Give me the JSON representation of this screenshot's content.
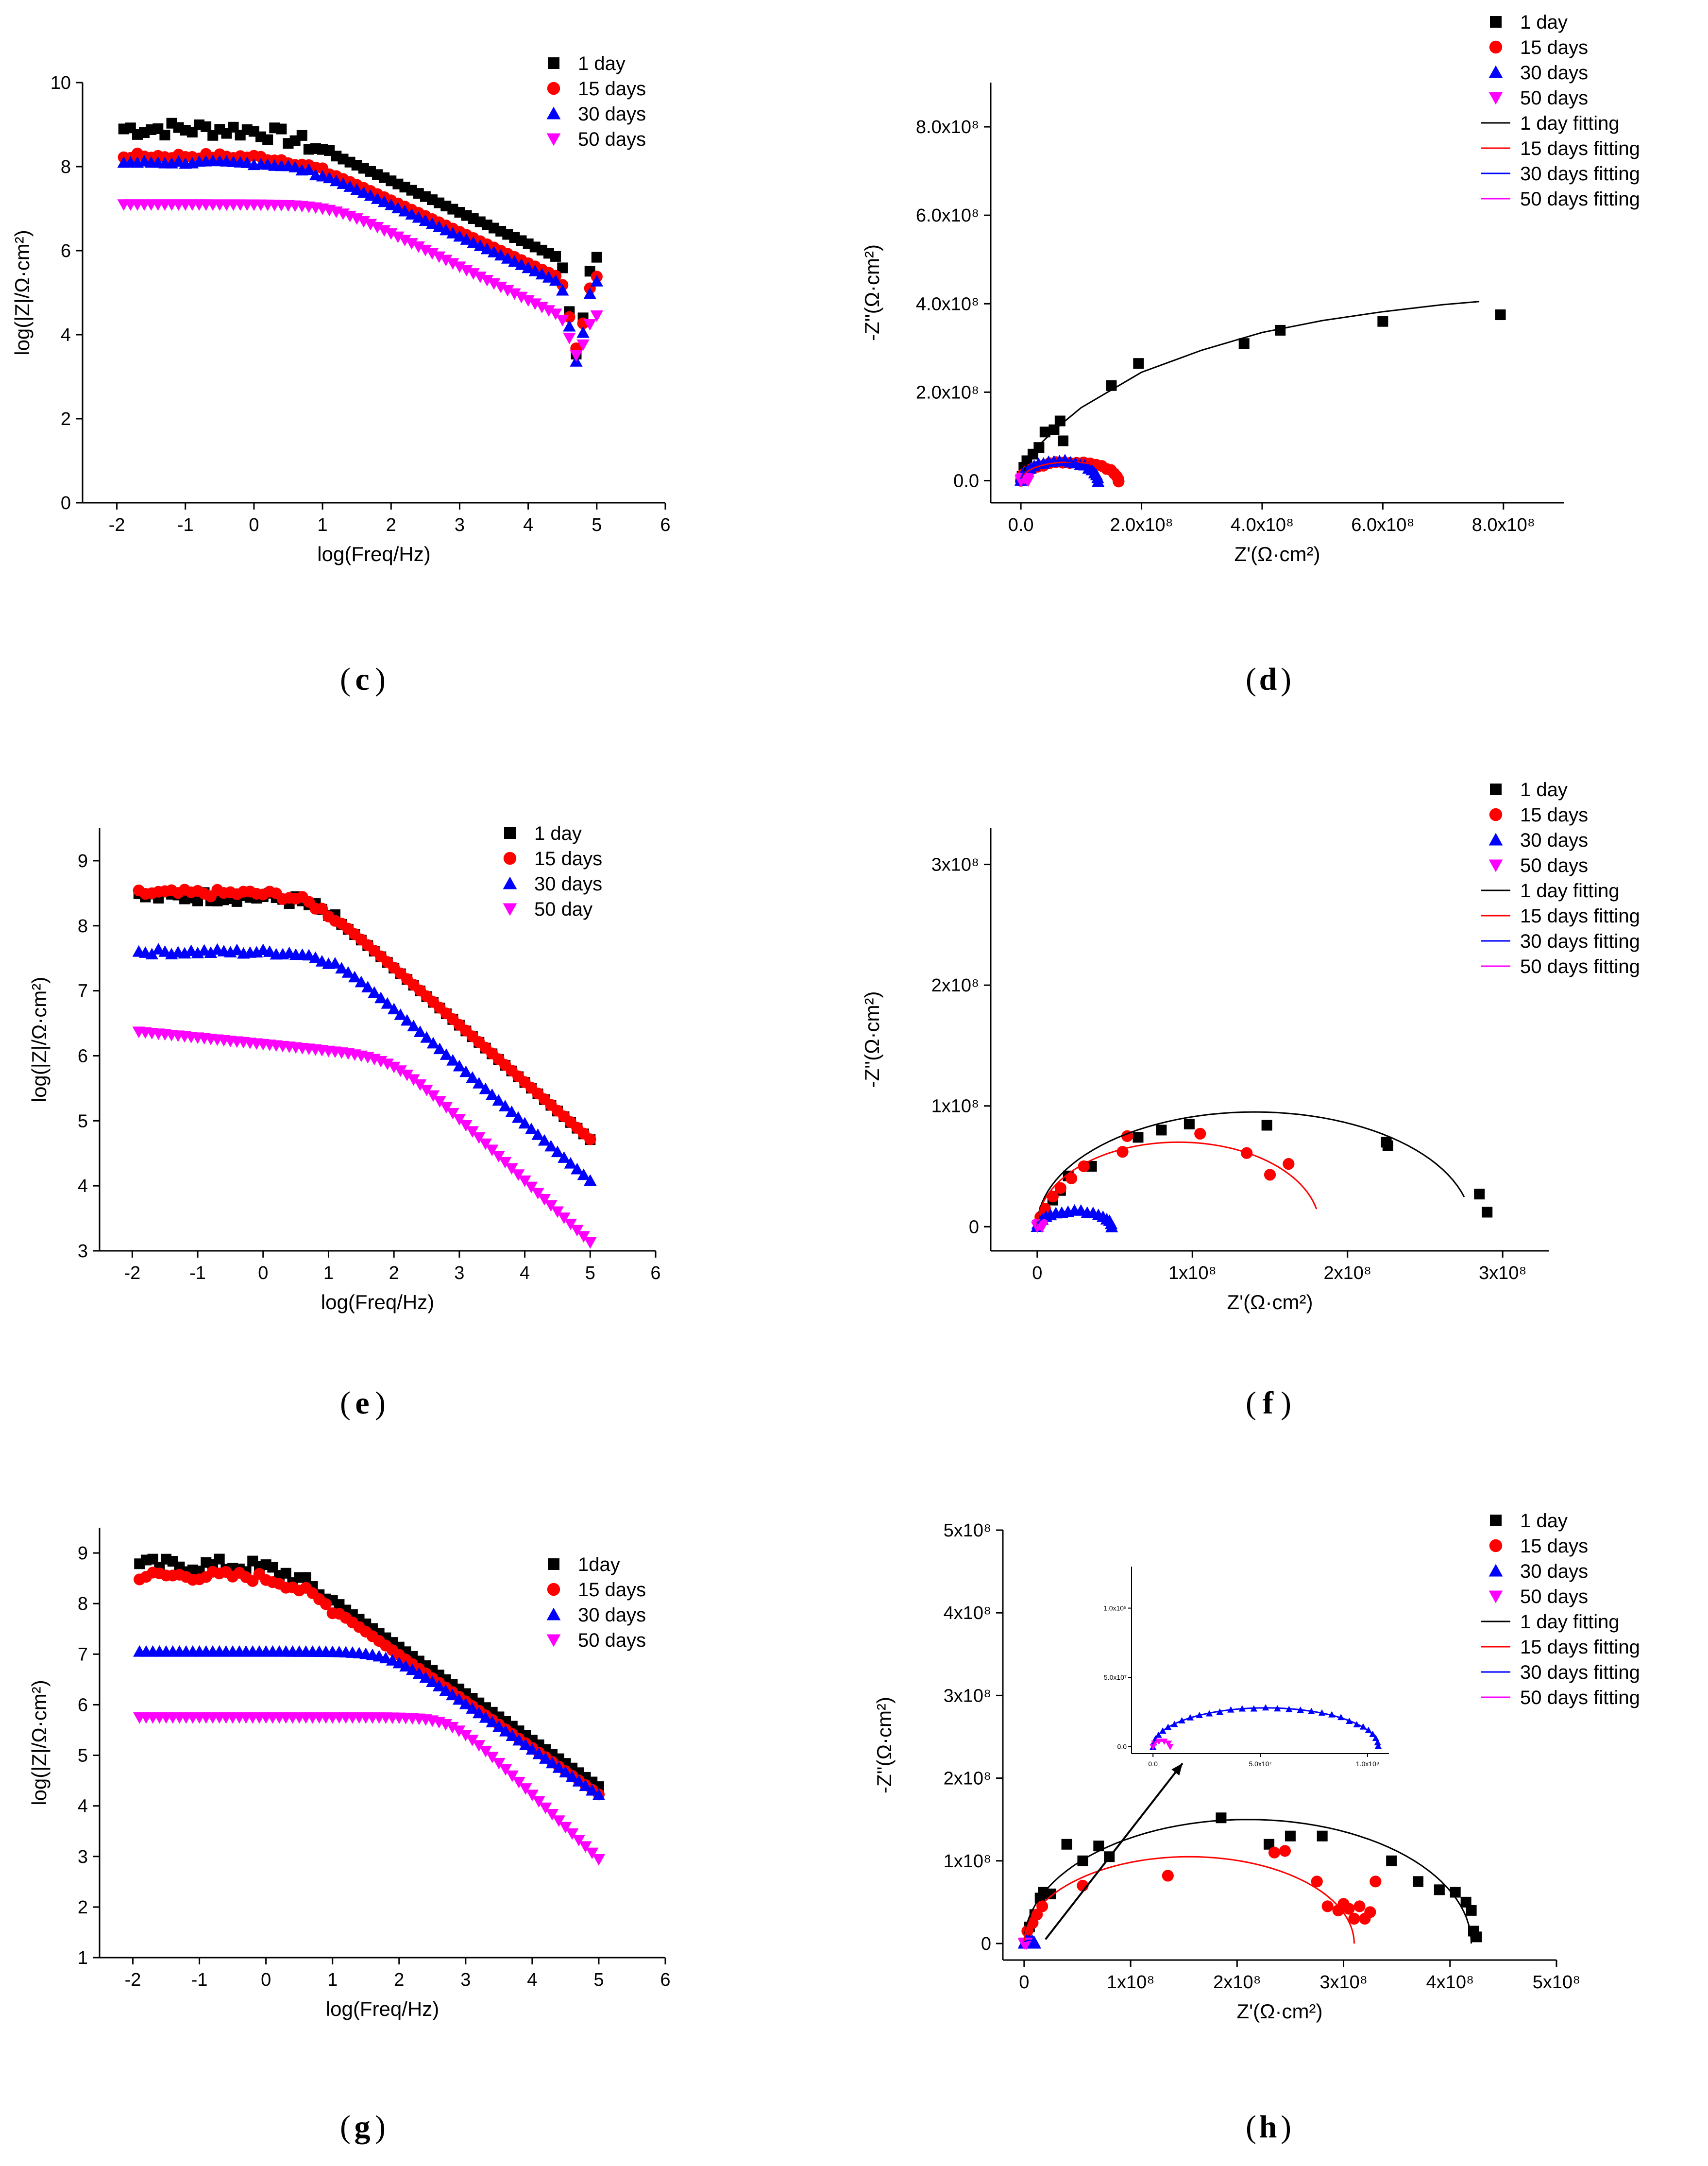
{
  "chart_data": [
    {
      "id": "c",
      "type": "scatter",
      "panel_label": "c",
      "xlabel": "log(Freq/Hz)",
      "ylabel": "log(|Z|/Ω·cm²)",
      "xlim": [
        -2.5,
        6
      ],
      "ylim": [
        0,
        10
      ],
      "xticks": [
        -2,
        -1,
        0,
        1,
        2,
        3,
        4,
        5,
        6
      ],
      "yticks": [
        0,
        2,
        4,
        6,
        8,
        10
      ],
      "legend_position": "top-right",
      "series": [
        {
          "name": "1 day",
          "color": "#000000",
          "marker": "square",
          "kind": "bode",
          "plateau": 8.9,
          "fc": 0.35,
          "alpha": 0.75,
          "noise": 0.22,
          "dip": 2.1
        },
        {
          "name": "15 days",
          "color": "#ff0000",
          "marker": "circle",
          "kind": "bode",
          "plateau": 8.25,
          "fc": 0.6,
          "alpha": 0.75,
          "noise": 0.08,
          "dip": 1.5
        },
        {
          "name": "30 days",
          "color": "#0000ff",
          "marker": "triangle-up",
          "kind": "bode",
          "plateau": 8.1,
          "fc": 0.65,
          "alpha": 0.75,
          "noise": 0.05,
          "dip": 1.7
        },
        {
          "name": "50 days",
          "color": "#ff00ff",
          "marker": "triangle-down",
          "kind": "bode",
          "plateau": 7.1,
          "fc": 1.15,
          "alpha": 0.8,
          "noise": 0.0,
          "dip": 0.75
        }
      ]
    },
    {
      "id": "d",
      "type": "scatter",
      "panel_label": "d",
      "xlabel": "Z'(Ω·cm²)",
      "ylabel": "-Z''(Ω·cm²)",
      "xlim": [
        -0.5,
        9
      ],
      "ylim": [
        -0.5,
        9
      ],
      "unit_exp": 8,
      "xticks": [
        0,
        2,
        4,
        6,
        8
      ],
      "yticks": [
        0,
        2,
        4,
        6,
        8
      ],
      "legend_position": "top-right",
      "series": [
        {
          "name": "1 day",
          "color": "#000000",
          "marker": "square",
          "kind": "points",
          "points": [
            [
              0.02,
              0.1
            ],
            [
              0.05,
              0.3
            ],
            [
              0.1,
              0.45
            ],
            [
              0.2,
              0.6
            ],
            [
              0.3,
              0.75
            ],
            [
              0.4,
              1.1
            ],
            [
              0.55,
              1.15
            ],
            [
              0.65,
              1.35
            ],
            [
              0.7,
              0.9
            ],
            [
              1.5,
              2.15
            ],
            [
              1.95,
              2.65
            ],
            [
              3.7,
              3.1
            ],
            [
              4.3,
              3.4
            ],
            [
              6.0,
              3.6
            ],
            [
              7.95,
              3.75
            ]
          ]
        },
        {
          "name": "15 days",
          "color": "#ff0000",
          "marker": "circle",
          "kind": "arc",
          "r0": 0.0,
          "r1": 1.62,
          "h": 0.42,
          "n": 22,
          "noise": 0.04
        },
        {
          "name": "30 days",
          "color": "#0000ff",
          "marker": "triangle-up",
          "kind": "arc",
          "r0": 0.0,
          "r1": 1.28,
          "h": 0.45,
          "n": 22,
          "noise": 0.05
        },
        {
          "name": "50 days",
          "color": "#ff00ff",
          "marker": "triangle-down",
          "kind": "arc",
          "r0": 0.0,
          "r1": 0.12,
          "h": 0.06,
          "n": 6,
          "noise": 0.0
        },
        {
          "name": "1 day fitting",
          "color": "#000000",
          "kind": "line",
          "points": [
            [
              0.0,
              0.0
            ],
            [
              0.1,
              0.4
            ],
            [
              0.3,
              0.8
            ],
            [
              0.6,
              1.2
            ],
            [
              1.0,
              1.65
            ],
            [
              1.5,
              2.05
            ],
            [
              2.0,
              2.45
            ],
            [
              3.0,
              2.95
            ],
            [
              4.0,
              3.35
            ],
            [
              5.0,
              3.62
            ],
            [
              6.0,
              3.82
            ],
            [
              7.0,
              3.98
            ],
            [
              7.6,
              4.05
            ]
          ]
        },
        {
          "name": "15 days fitting",
          "color": "#ff0000",
          "kind": "arcline",
          "r0": 0.0,
          "r1": 1.62,
          "h": 0.42
        },
        {
          "name": "30 days fitting",
          "color": "#0000ff",
          "kind": "arcline",
          "r0": 0.0,
          "r1": 1.28,
          "h": 0.45
        },
        {
          "name": "50 days fitting",
          "color": "#ff00ff",
          "kind": "arcline",
          "r0": 0.0,
          "r1": 0.12,
          "h": 0.06
        }
      ]
    },
    {
      "id": "e",
      "type": "scatter",
      "panel_label": "e",
      "xlabel": "log(Freq/Hz)",
      "ylabel": "log(|Z|/Ω·cm²)",
      "xlim": [
        -2.5,
        6
      ],
      "ylim": [
        3,
        9.5
      ],
      "xticks": [
        -2,
        -1,
        0,
        1,
        2,
        3,
        4,
        5,
        6
      ],
      "yticks": [
        3,
        4,
        5,
        6,
        7,
        8,
        9
      ],
      "legend_position": "top-right",
      "series": [
        {
          "name": "1 day",
          "color": "#000000",
          "marker": "square",
          "kind": "bode",
          "plateau": 8.45,
          "fc": 0.75,
          "alpha": 0.88,
          "noise": 0.1,
          "dip": 0
        },
        {
          "name": "15 days",
          "color": "#ff0000",
          "marker": "circle",
          "kind": "bode",
          "plateau": 8.5,
          "fc": 0.7,
          "alpha": 0.88,
          "noise": 0.07,
          "dip": 0
        },
        {
          "name": "30 days",
          "color": "#0000ff",
          "marker": "triangle-up",
          "kind": "bode",
          "plateau": 7.6,
          "fc": 1.0,
          "alpha": 0.88,
          "noise": 0.05,
          "dip": 0
        },
        {
          "name": "50 day",
          "color": "#ff00ff",
          "marker": "triangle-down",
          "kind": "bode2",
          "start": 6.38,
          "slope": 0.1,
          "fc": 2.0,
          "alpha": 0.85,
          "noise": 0.0,
          "dip": 0
        }
      ]
    },
    {
      "id": "f",
      "type": "scatter",
      "panel_label": "f",
      "xlabel": "Z'(Ω·cm²)",
      "ylabel": "-Z''(Ω·cm²)",
      "xlim": [
        -0.3,
        3.3
      ],
      "ylim": [
        -0.2,
        3.3
      ],
      "unit_exp": 8,
      "xticks": [
        0,
        1,
        2,
        3
      ],
      "yticks": [
        0,
        1,
        2,
        3
      ],
      "legend_position": "top-right",
      "series": [
        {
          "name": "1 day",
          "color": "#000000",
          "marker": "square",
          "kind": "points",
          "points": [
            [
              0.02,
              0.05
            ],
            [
              0.05,
              0.12
            ],
            [
              0.1,
              0.22
            ],
            [
              0.15,
              0.3
            ],
            [
              0.2,
              0.42
            ],
            [
              0.35,
              0.5
            ],
            [
              0.65,
              0.74
            ],
            [
              0.8,
              0.8
            ],
            [
              0.98,
              0.85
            ],
            [
              1.48,
              0.84
            ],
            [
              2.25,
              0.7
            ],
            [
              2.26,
              0.67
            ],
            [
              2.85,
              0.27
            ],
            [
              2.9,
              0.12
            ]
          ]
        },
        {
          "name": "15 days",
          "color": "#ff0000",
          "marker": "circle",
          "kind": "points",
          "points": [
            [
              0.02,
              0.08
            ],
            [
              0.05,
              0.15
            ],
            [
              0.1,
              0.25
            ],
            [
              0.15,
              0.32
            ],
            [
              0.22,
              0.4
            ],
            [
              0.3,
              0.5
            ],
            [
              0.55,
              0.62
            ],
            [
              0.58,
              0.75
            ],
            [
              1.05,
              0.77
            ],
            [
              1.35,
              0.61
            ],
            [
              1.5,
              0.43
            ],
            [
              1.62,
              0.52
            ]
          ]
        },
        {
          "name": "30 days",
          "color": "#0000ff",
          "marker": "triangle-up",
          "kind": "arc",
          "r0": 0.0,
          "r1": 0.48,
          "h": 0.13,
          "n": 18,
          "noise": 0.015
        },
        {
          "name": "50 days",
          "color": "#ff00ff",
          "marker": "triangle-down",
          "kind": "arc",
          "r0": 0.0,
          "r1": 0.03,
          "h": 0.02,
          "n": 4,
          "noise": 0.0
        },
        {
          "name": "1 day fitting",
          "color": "#000000",
          "kind": "arcline",
          "r0": 0.0,
          "r1": 2.8,
          "h": 0.95,
          "tail": 0.15
        },
        {
          "name": "15 days fitting",
          "color": "#ff0000",
          "kind": "arcline",
          "r0": 0.0,
          "r1": 1.82,
          "h": 0.7,
          "tail": 0.12
        },
        {
          "name": "30 days fitting",
          "color": "#0000ff",
          "kind": "arcline",
          "r0": 0.0,
          "r1": 0.48,
          "h": 0.13
        },
        {
          "name": "50 days fitting",
          "color": "#ff00ff",
          "kind": "arcline",
          "r0": 0.0,
          "r1": 0.03,
          "h": 0.02
        }
      ]
    },
    {
      "id": "g",
      "type": "scatter",
      "panel_label": "g",
      "xlabel": "log(Freq/Hz)",
      "ylabel": "log(|Z|/Ω·cm²)",
      "xlim": [
        -2.5,
        6
      ],
      "ylim": [
        1,
        9.5
      ],
      "xticks": [
        -2,
        -1,
        0,
        1,
        2,
        3,
        4,
        5,
        6
      ],
      "yticks": [
        1,
        2,
        3,
        4,
        5,
        6,
        7,
        8,
        9
      ],
      "legend_position": "top-right",
      "series": [
        {
          "name": "1day",
          "color": "#000000",
          "marker": "square",
          "kind": "bode",
          "plateau": 8.75,
          "fc": 0.25,
          "alpha": 0.92,
          "noise": 0.18,
          "dip": 0
        },
        {
          "name": "15 days",
          "color": "#ff0000",
          "marker": "circle",
          "kind": "bode",
          "plateau": 8.55,
          "fc": 0.3,
          "alpha": 0.92,
          "noise": 0.12,
          "dip": 0
        },
        {
          "name": "30 days",
          "color": "#0000ff",
          "marker": "triangle-up",
          "kind": "bode",
          "plateau": 7.05,
          "fc": 1.85,
          "alpha": 0.9,
          "noise": 0.0,
          "dip": 0
        },
        {
          "name": "50 days",
          "color": "#ff00ff",
          "marker": "triangle-down",
          "kind": "bode3",
          "plateau": 5.75,
          "fc": 2.8,
          "alpha": 1.7,
          "noise": 0.0,
          "dip": 0
        }
      ]
    },
    {
      "id": "h",
      "type": "scatter",
      "panel_label": "h",
      "xlabel": "Z'(Ω·cm²)",
      "ylabel": "-Z''(Ω·cm²)",
      "xlim": [
        -0.2,
        5
      ],
      "ylim": [
        -0.2,
        5
      ],
      "unit_exp": 8,
      "xticks": [
        0,
        1,
        2,
        3,
        4,
        5
      ],
      "yticks": [
        0,
        1,
        2,
        3,
        4,
        5
      ],
      "legend_position": "top-right",
      "series": [
        {
          "name": "1 day",
          "color": "#000000",
          "marker": "square",
          "kind": "points",
          "points": [
            [
              0.05,
              0.2
            ],
            [
              0.1,
              0.35
            ],
            [
              0.15,
              0.55
            ],
            [
              0.18,
              0.62
            ],
            [
              0.25,
              0.6
            ],
            [
              0.4,
              1.2
            ],
            [
              0.55,
              1.0
            ],
            [
              0.7,
              1.18
            ],
            [
              0.8,
              1.05
            ],
            [
              1.85,
              1.52
            ],
            [
              2.3,
              1.2
            ],
            [
              2.5,
              1.3
            ],
            [
              2.8,
              1.3
            ],
            [
              3.45,
              1.0
            ],
            [
              3.7,
              0.75
            ],
            [
              3.9,
              0.65
            ],
            [
              4.05,
              0.62
            ],
            [
              4.15,
              0.5
            ],
            [
              4.2,
              0.4
            ],
            [
              4.22,
              0.15
            ],
            [
              4.25,
              0.08
            ]
          ]
        },
        {
          "name": "15 days",
          "color": "#ff0000",
          "marker": "circle",
          "kind": "points",
          "points": [
            [
              0.03,
              0.15
            ],
            [
              0.08,
              0.25
            ],
            [
              0.12,
              0.35
            ],
            [
              0.17,
              0.45
            ],
            [
              0.55,
              0.7
            ],
            [
              1.35,
              0.82
            ],
            [
              2.35,
              1.1
            ],
            [
              2.45,
              1.12
            ],
            [
              2.75,
              0.75
            ],
            [
              2.85,
              0.45
            ],
            [
              2.95,
              0.4
            ],
            [
              3.0,
              0.48
            ],
            [
              3.05,
              0.42
            ],
            [
              3.1,
              0.3
            ],
            [
              3.15,
              0.45
            ],
            [
              3.2,
              0.3
            ],
            [
              3.25,
              0.38
            ],
            [
              3.3,
              0.75
            ]
          ]
        },
        {
          "name": "30 days",
          "color": "#0000ff",
          "marker": "triangle-up",
          "kind": "arc",
          "r0": 0.0,
          "r1": 0.1,
          "h": 0.04,
          "n": 6,
          "noise": 0.0
        },
        {
          "name": "50 days",
          "color": "#ff00ff",
          "marker": "triangle-down",
          "kind": "arc",
          "r0": 0.0,
          "r1": 0.02,
          "h": 0.01,
          "n": 3,
          "noise": 0.0
        },
        {
          "name": "1 day fitting",
          "color": "#000000",
          "kind": "arcline",
          "r0": 0.0,
          "r1": 4.2,
          "h": 1.5
        },
        {
          "name": "15 days fitting",
          "color": "#ff0000",
          "kind": "arcline",
          "r0": 0.0,
          "r1": 3.1,
          "h": 1.05
        },
        {
          "name": "30 days fitting",
          "color": "#0000ff",
          "kind": "arcline",
          "r0": 0.0,
          "r1": 0.1,
          "h": 0.04
        },
        {
          "name": "50 days fitting",
          "color": "#ff00ff",
          "kind": "arcline",
          "r0": 0.0,
          "r1": 0.02,
          "h": 0.01
        }
      ],
      "inset": {
        "unit_exp": 7,
        "xlim": [
          -0.1,
          1.1
        ],
        "ylim": [
          -0.05,
          1.3
        ],
        "xticks": [
          0,
          0.5,
          1
        ],
        "xtick_labels": [
          "0.0",
          "5.0x10⁷",
          "1.0x10⁸"
        ],
        "yticks": [
          0,
          0.5,
          1
        ],
        "ytick_labels": [
          "0.0",
          "5.0x10⁷",
          "1.0x10⁸"
        ],
        "series": [
          {
            "name": "30 days",
            "color": "#0000ff",
            "marker": "triangle-up",
            "kind": "arc",
            "r0": 0.0,
            "r1": 1.05,
            "h": 0.28,
            "n": 30,
            "noise": 0.01
          },
          {
            "name": "50 days",
            "color": "#ff00ff",
            "marker": "triangle-down",
            "kind": "arc",
            "r0": 0.0,
            "r1": 0.08,
            "h": 0.04,
            "n": 5,
            "noise": 0.0
          },
          {
            "name": "30 days fitting",
            "color": "#0000ff",
            "kind": "arcline",
            "r0": 0.0,
            "r1": 1.05,
            "h": 0.28
          },
          {
            "name": "50 days fitting",
            "color": "#ff00ff",
            "kind": "arcline",
            "r0": 0.0,
            "r1": 0.08,
            "h": 0.04
          }
        ]
      }
    }
  ]
}
